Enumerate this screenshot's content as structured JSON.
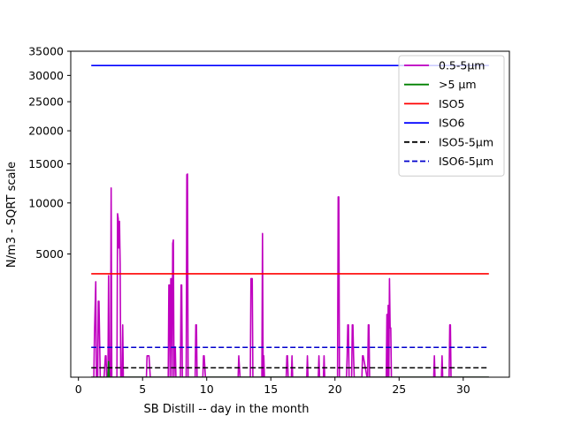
{
  "chart_data": {
    "type": "line",
    "title": "",
    "xlabel": "SB Distill -- day in the month",
    "ylabel": "N/m3 - SQRT scale",
    "y_scale": "sqrt",
    "xlim": [
      -0.6,
      33.6
    ],
    "ylim": [
      0,
      35000
    ],
    "x_ticks": [
      0,
      5,
      10,
      15,
      20,
      25,
      30
    ],
    "y_ticks": [
      5000,
      10000,
      15000,
      20000,
      25000,
      30000,
      35000
    ],
    "grid": false,
    "legend_position": "top-right",
    "series": [
      {
        "name": "0.5-5µm",
        "color": "#bf00bf",
        "style": "solid",
        "x": [
          1.0,
          1.2,
          1.25,
          1.3,
          1.35,
          1.4,
          1.5,
          1.55,
          1.6,
          1.7,
          2.0,
          2.1,
          2.15,
          2.2,
          2.3,
          2.35,
          2.4,
          2.5,
          2.55,
          2.6,
          2.7,
          3.0,
          3.05,
          3.1,
          3.15,
          3.2,
          3.25,
          3.3,
          3.4,
          3.45,
          3.5,
          3.6,
          5.3,
          5.35,
          5.4,
          5.45,
          5.5,
          5.6,
          7.0,
          7.05,
          7.1,
          7.15,
          7.2,
          7.25,
          7.3,
          7.35,
          7.4,
          7.45,
          7.5,
          7.55,
          7.6,
          7.7,
          7.95,
          8.0,
          8.05,
          8.1,
          8.4,
          8.45,
          8.5,
          8.55,
          8.6,
          8.7,
          9.1,
          9.15,
          9.2,
          9.25,
          9.3,
          9.7,
          9.75,
          9.8,
          9.9,
          12.4,
          12.45,
          12.5,
          12.6,
          13.4,
          13.45,
          13.5,
          13.55,
          13.6,
          13.7,
          14.3,
          14.35,
          14.4,
          14.45,
          14.5,
          16.2,
          16.25,
          16.3,
          16.35,
          16.6,
          16.65,
          16.7,
          17.8,
          17.85,
          17.9,
          18.7,
          18.75,
          18.8,
          19.1,
          19.15,
          19.2,
          20.2,
          20.25,
          20.3,
          20.35,
          20.4,
          20.9,
          20.95,
          21.0,
          21.05,
          21.1,
          21.3,
          21.35,
          21.4,
          21.45,
          21.5,
          22.1,
          22.15,
          22.2,
          22.5,
          22.55,
          22.6,
          22.65,
          22.7,
          24.0,
          24.05,
          24.1,
          24.15,
          24.2,
          24.25,
          24.3,
          24.35,
          24.4,
          27.7,
          27.75,
          27.8,
          28.3,
          28.35,
          28.4,
          28.9,
          28.95,
          29.0,
          29.05,
          29.1,
          32.0
        ],
        "y": [
          0,
          0,
          600,
          1600,
          3000,
          0,
          0,
          1900,
          1900,
          0,
          0,
          150,
          150,
          0,
          0,
          3400,
          0,
          0,
          11800,
          0,
          0,
          0,
          8800,
          8300,
          5500,
          8000,
          4200,
          0,
          0,
          900,
          0,
          0,
          0,
          150,
          150,
          150,
          150,
          0,
          0,
          2800,
          2800,
          0,
          3200,
          3200,
          0,
          5900,
          6200,
          0,
          300,
          300,
          0,
          0,
          0,
          2800,
          2800,
          0,
          0,
          13500,
          13600,
          0,
          0,
          0,
          0,
          900,
          900,
          0,
          0,
          0,
          150,
          150,
          0,
          0,
          0,
          150,
          0,
          0,
          3200,
          3200,
          3200,
          0,
          0,
          0,
          6800,
          0,
          150,
          0,
          0,
          150,
          150,
          0,
          0,
          150,
          0,
          0,
          150,
          0,
          0,
          150,
          0,
          0,
          150,
          0,
          0,
          10700,
          10700,
          0,
          0,
          0,
          150,
          900,
          900,
          0,
          0,
          900,
          900,
          150,
          0,
          0,
          150,
          150,
          0,
          0,
          900,
          900,
          0,
          0,
          1300,
          0,
          1700,
          0,
          3200,
          800,
          800,
          0,
          0,
          150,
          0,
          0,
          150,
          0,
          0,
          900,
          900,
          0,
          0,
          0
        ]
      },
      {
        "name": ">5 µm",
        "color": "#008000",
        "style": "solid",
        "x": [
          1.0,
          2.3,
          2.35,
          2.4,
          32.0
        ],
        "y": [
          0,
          0,
          80,
          0,
          0
        ]
      },
      {
        "name": "ISO5",
        "color": "#ff0000",
        "style": "solid",
        "x": [
          1.0,
          32.0
        ],
        "y": [
          3520,
          3520
        ]
      },
      {
        "name": "ISO6",
        "color": "#0000ff",
        "style": "solid",
        "x": [
          1.0,
          32.0
        ],
        "y": [
          32000,
          32000
        ]
      },
      {
        "name": "ISO5-5µm",
        "color": "#000000",
        "style": "dashed",
        "x": [
          1.0,
          32.0
        ],
        "y": [
          29,
          29
        ]
      },
      {
        "name": "ISO6-5µm",
        "color": "#0000cc",
        "style": "dashed",
        "x": [
          1.0,
          32.0
        ],
        "y": [
          293,
          293
        ]
      }
    ]
  }
}
